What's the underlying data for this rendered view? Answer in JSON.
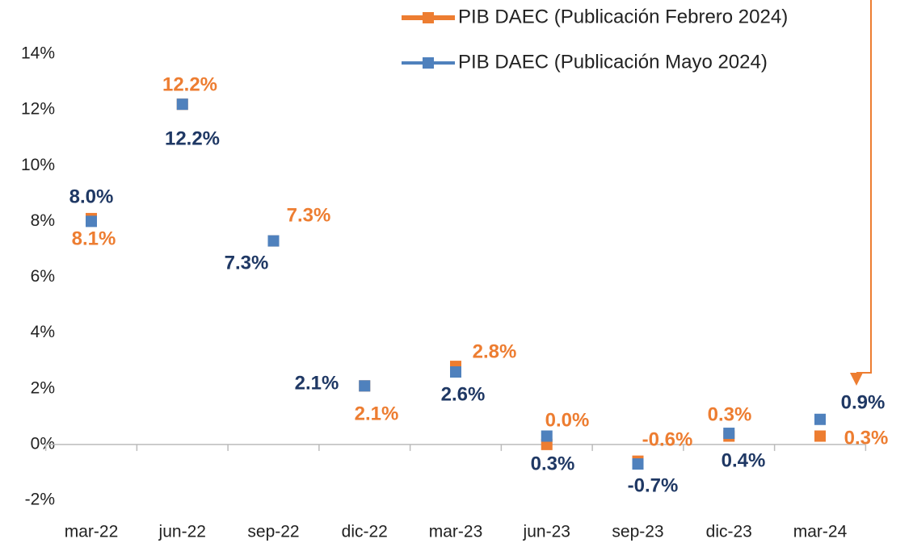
{
  "chart_data": {
    "type": "line",
    "categories": [
      "mar-22",
      "jun-22",
      "sep-22",
      "dic-22",
      "mar-23",
      "jun-23",
      "sep-23",
      "dic-23",
      "mar-24"
    ],
    "series": [
      {
        "name": "PIB DAEC (Publicación Febrero 2024)",
        "color": "#ED7D31",
        "values": [
          8.1,
          12.2,
          7.3,
          2.1,
          2.8,
          0.0,
          -0.6,
          0.3,
          0.3
        ],
        "value_labels": [
          "8.1%",
          "12.2%",
          "7.3%",
          "2.1%",
          "2.8%",
          "0.0%",
          "-0.6%",
          "0.3%",
          "0.3%"
        ]
      },
      {
        "name": "PIB DAEC (Publicación Mayo 2024)",
        "color": "#4F81BD",
        "values": [
          8.0,
          12.2,
          7.3,
          2.1,
          2.6,
          0.3,
          -0.7,
          0.4,
          0.9
        ],
        "value_labels": [
          "8.0%",
          "12.2%",
          "7.3%",
          "2.1%",
          "2.6%",
          "0.3%",
          "-0.7%",
          "0.4%",
          "0.9%"
        ]
      }
    ],
    "ylim": [
      -2,
      14
    ],
    "yticks": [
      {
        "value": -2,
        "label": "-2%"
      },
      {
        "value": 0,
        "label": "0%"
      },
      {
        "value": 2,
        "label": "2%"
      },
      {
        "value": 4,
        "label": "4%"
      },
      {
        "value": 6,
        "label": "6%"
      },
      {
        "value": 8,
        "label": "8%"
      },
      {
        "value": 10,
        "label": "10%"
      },
      {
        "value": 12,
        "label": "12%"
      },
      {
        "value": 14,
        "label": "14%"
      }
    ],
    "grid": false
  }
}
